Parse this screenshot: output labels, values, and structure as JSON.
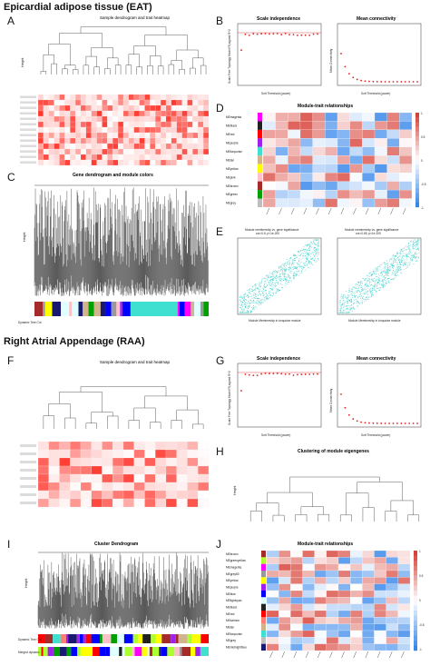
{
  "figure": {
    "section_eat": "Epicardial adipose tissue (EAT)",
    "section_raa": "Right Atrial Appendage (RAA)",
    "panel_labels": [
      "A",
      "B",
      "C",
      "D",
      "E",
      "F",
      "G",
      "H",
      "I",
      "J"
    ]
  },
  "panel_a": {
    "title": "Sample dendrogram and trait heatmap",
    "ylabel": "Height"
  },
  "panel_b": {
    "title_left": "Scale independence",
    "title_right": "Mean connectivity",
    "xlabel": "Soft Threshold (power)",
    "ylabel_left": "Scale Free Topology Model Fit,signed R^2",
    "ylabel_right": "Mean Connectivity"
  },
  "panel_c": {
    "title": "Gene dendrogram and module colors",
    "ylabel": "Height",
    "color_bar_label": "Dynamic Tree Cut"
  },
  "panel_d": {
    "title": "Module-trait relationships",
    "modules": [
      "MEmagenta",
      "MEblack",
      "MEred",
      "MEpurple",
      "MEturquoise",
      "MEtan",
      "MEyellow",
      "MEpink",
      "MEbrown",
      "MEgreen",
      "MEgrey"
    ],
    "module_colors": [
      "#ff00ff",
      "#222222",
      "#ff0000",
      "#a020f0",
      "#40e0d0",
      "#d2b48c",
      "#ffff00",
      "#ffc0cb",
      "#a52a2a",
      "#00a000",
      "#bebebe"
    ],
    "legend_ticks": [
      "1",
      "0.5",
      "0",
      "-0.5",
      "-1"
    ]
  },
  "panel_e": {
    "title_left": "Module membership vs. gene significance",
    "sub_left": "cor=0.6, p<1e-200",
    "title_right": "Module membership vs. gene significance",
    "sub_right": "cor=0.65, p<1e-200",
    "xlabel_left": "Module Membership in turquoise module",
    "xlabel_right": "Module Membership in turquoise module"
  },
  "panel_f": {
    "title": "Sample dendrogram and trait heatmap"
  },
  "panel_g": {
    "title_left": "Scale independence",
    "title_right": "Mean connectivity",
    "xlabel": "Soft Threshold (power)",
    "ylabel_left": "Scale Free Topology Model Fit,signed R^2",
    "ylabel_right": "Mean Connectivity"
  },
  "panel_h": {
    "title": "Clustering of module eigengenes",
    "ylabel": "Height"
  },
  "panel_i": {
    "title": "Cluster Dendrogram",
    "ylabel": "Height",
    "bar1": "Dynamic Tree Cut",
    "bar2": "Merged dynamic"
  },
  "panel_j": {
    "title": "Module-trait relationships",
    "modules": [
      "MEbrown",
      "MEgreenyellow",
      "MEmagenta",
      "MEgrey60",
      "MEyellow",
      "MEpurple",
      "MEblue",
      "MElightcyan",
      "MEblack",
      "MEred",
      "MEsalmon",
      "MEtan",
      "MEturquoise",
      "MEgrey",
      "MEmidnightblue"
    ],
    "module_colors": [
      "#a52a2a",
      "#adff2f",
      "#ff00ff",
      "#999999",
      "#ffff00",
      "#a020f0",
      "#0000ff",
      "#e0ffff",
      "#222222",
      "#ff0000",
      "#fa8072",
      "#d2b48c",
      "#40e0d0",
      "#bebebe",
      "#191970"
    ],
    "legend_ticks": [
      "1",
      "0.5",
      "0",
      "-0.5",
      "-1"
    ]
  }
}
